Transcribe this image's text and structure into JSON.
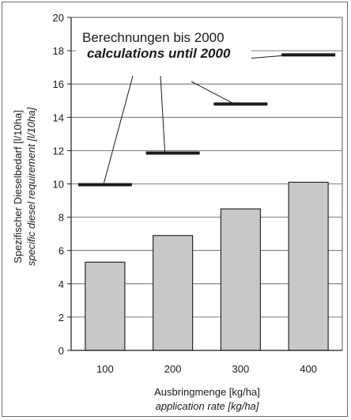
{
  "chart_data": {
    "type": "bar",
    "categories": [
      "100",
      "200",
      "300",
      "400"
    ],
    "values": [
      5.3,
      6.9,
      8.5,
      10.1
    ],
    "ylim": [
      0,
      20
    ],
    "yticks": [
      "0",
      "2",
      "4",
      "6",
      "8",
      "10",
      "12",
      "14",
      "16",
      "18",
      "20"
    ],
    "grid": true,
    "xlabel": "Ausbringmenge [kg/ha]",
    "xlabel_en": "application rate [kg/ha]",
    "ylabel": "Spezifischer Dieselbedarf [l/10ha]",
    "ylabel_en": "specific diesel requirement [l/10ha]",
    "reference_series": {
      "label": "Berechnungen bis 2000",
      "label_en": "calculations until 2000",
      "values": [
        9.95,
        11.85,
        14.8,
        17.75
      ]
    },
    "colors": {
      "bar": "#c8c8c8",
      "marker": "#1a1a1a",
      "grid": "#555555"
    }
  }
}
